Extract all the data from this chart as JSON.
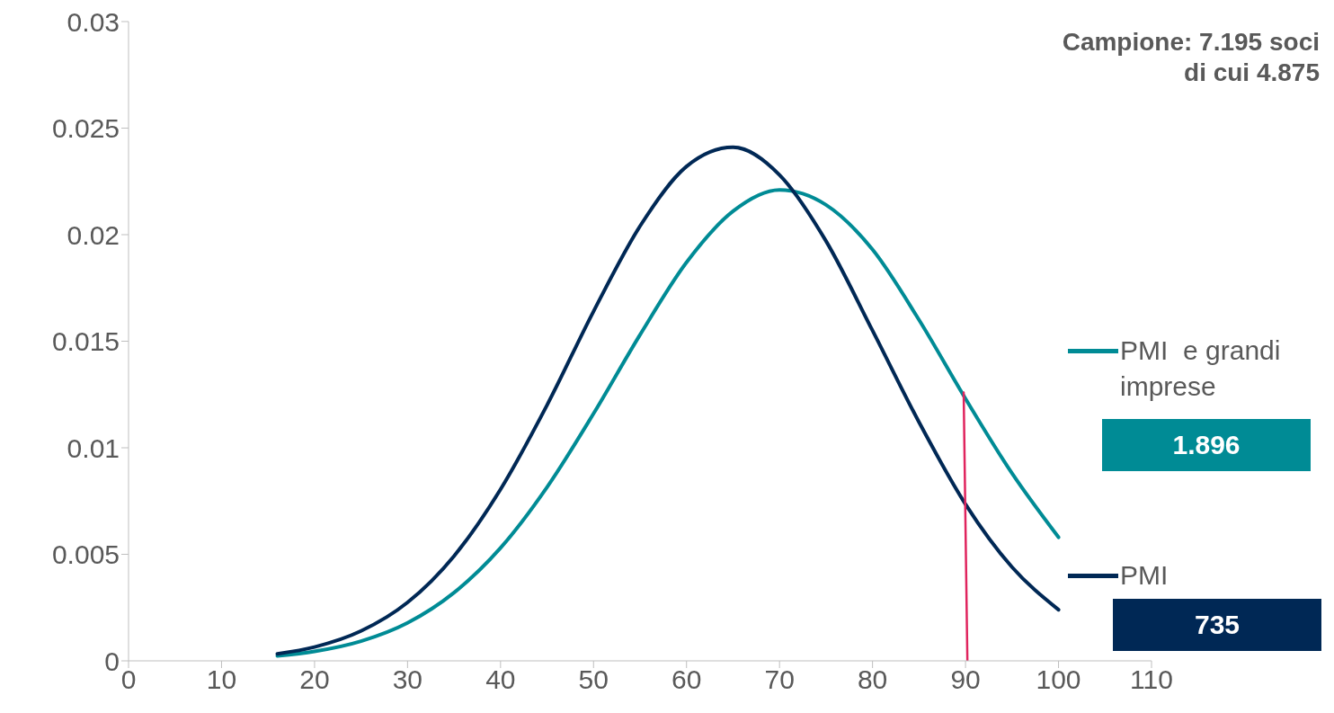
{
  "chart_data": {
    "type": "line",
    "annotations": [
      "Campione: 7.195 soci",
      "di cui 4.875",
      "1.896",
      "735"
    ],
    "xlim": [
      0,
      110
    ],
    "xticks": [
      0,
      10,
      20,
      30,
      40,
      50,
      60,
      70,
      80,
      90,
      100,
      110
    ],
    "ylim": [
      0,
      0.03
    ],
    "yticks": [
      0,
      0.005,
      0.01,
      0.015,
      0.02,
      0.025,
      0.03
    ],
    "legend": "right",
    "marker": "none",
    "line_style": "solid",
    "series": [
      {
        "name": "PMI  e grandi imprese",
        "color": "#008b95",
        "x": [
          16,
          20,
          25,
          30,
          35,
          40,
          45,
          50,
          55,
          60,
          65,
          70,
          75,
          80,
          85,
          90,
          95,
          100
        ],
        "values": [
          0.00023,
          0.00044,
          0.00092,
          0.00178,
          0.0032,
          0.0053,
          0.00815,
          0.0116,
          0.0153,
          0.0187,
          0.0211,
          0.0221,
          0.0214,
          0.0193,
          0.016,
          0.0123,
          0.0088,
          0.0058
        ]
      },
      {
        "name": "PMI",
        "color": "#002855",
        "x": [
          16,
          20,
          25,
          30,
          35,
          40,
          45,
          50,
          55,
          60,
          65,
          70,
          75,
          80,
          85,
          90,
          95,
          100
        ],
        "values": [
          0.00033,
          0.00065,
          0.0014,
          0.00274,
          0.00492,
          0.00805,
          0.012,
          0.0164,
          0.0204,
          0.0232,
          0.0241,
          0.0228,
          0.0197,
          0.0155,
          0.0112,
          0.00735,
          0.0044,
          0.0024
        ]
      },
      {
        "type": "line",
        "color": "#e0245e",
        "x": [
          89.8,
          90.2
        ],
        "values": [
          0.0126,
          0
        ]
      }
    ]
  }
}
